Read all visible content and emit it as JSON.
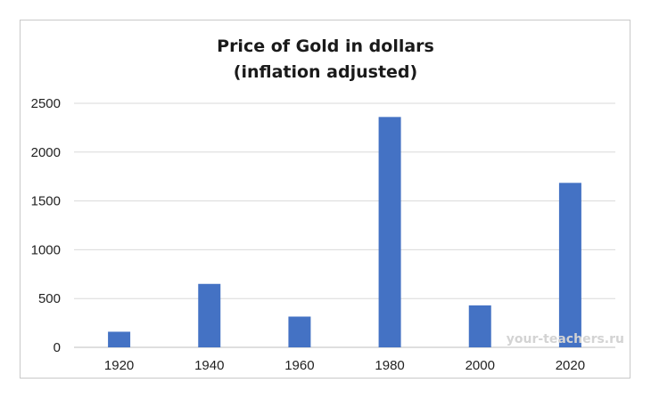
{
  "chart_data": {
    "type": "bar",
    "title_lines": [
      "Price of Gold in dollars",
      "(inflation adjusted)"
    ],
    "categories": [
      "1920",
      "1940",
      "1960",
      "1980",
      "2000",
      "2020"
    ],
    "values": [
      160,
      650,
      315,
      2360,
      430,
      1685
    ],
    "ylim": [
      0,
      2500
    ],
    "yticks": [
      0,
      500,
      1000,
      1500,
      2000,
      2500
    ],
    "grid": true,
    "legend": "none",
    "bar_color": "#4472C4",
    "xlabel": "",
    "ylabel": ""
  },
  "watermark": "your-teachers.ru"
}
